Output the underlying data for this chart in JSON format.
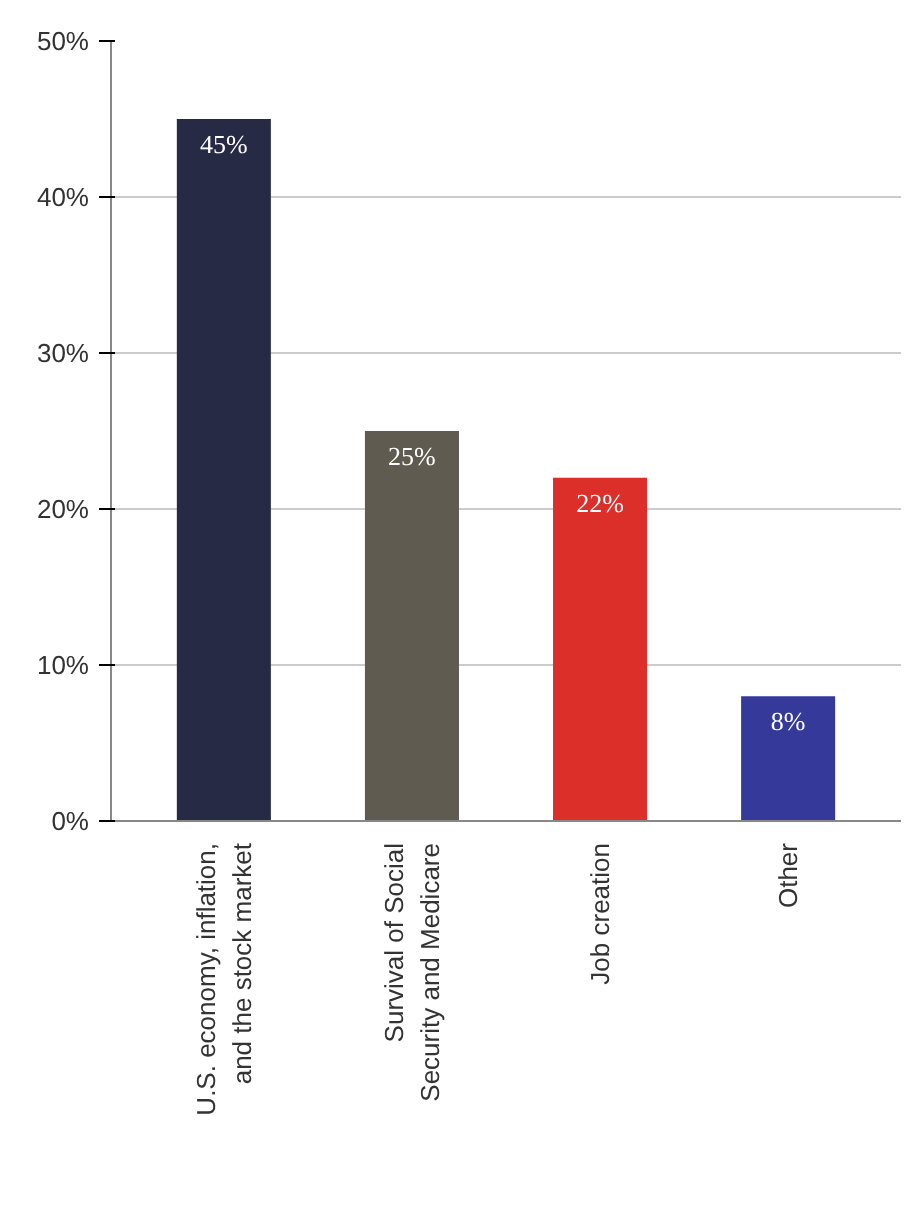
{
  "chart_data": {
    "type": "bar",
    "categories": [
      "U.S. economy, inflation,\nand the stock market",
      "Survival of Social\nSecurity and Medicare",
      "Job creation",
      "Other"
    ],
    "values": [
      45,
      25,
      22,
      8
    ],
    "colors": [
      "#262a45",
      "#5f5b50",
      "#dc2f2a",
      "#34399a"
    ],
    "value_labels": [
      "45%",
      "25%",
      "22%",
      "8%"
    ],
    "ylim": [
      0,
      50
    ],
    "yticks": [
      {
        "value": 0,
        "label": "0%"
      },
      {
        "value": 10,
        "label": "10%"
      },
      {
        "value": 20,
        "label": "20%"
      },
      {
        "value": 30,
        "label": "30%"
      },
      {
        "value": 40,
        "label": "40%"
      },
      {
        "value": 50,
        "label": "50%"
      }
    ],
    "grid": "y"
  }
}
